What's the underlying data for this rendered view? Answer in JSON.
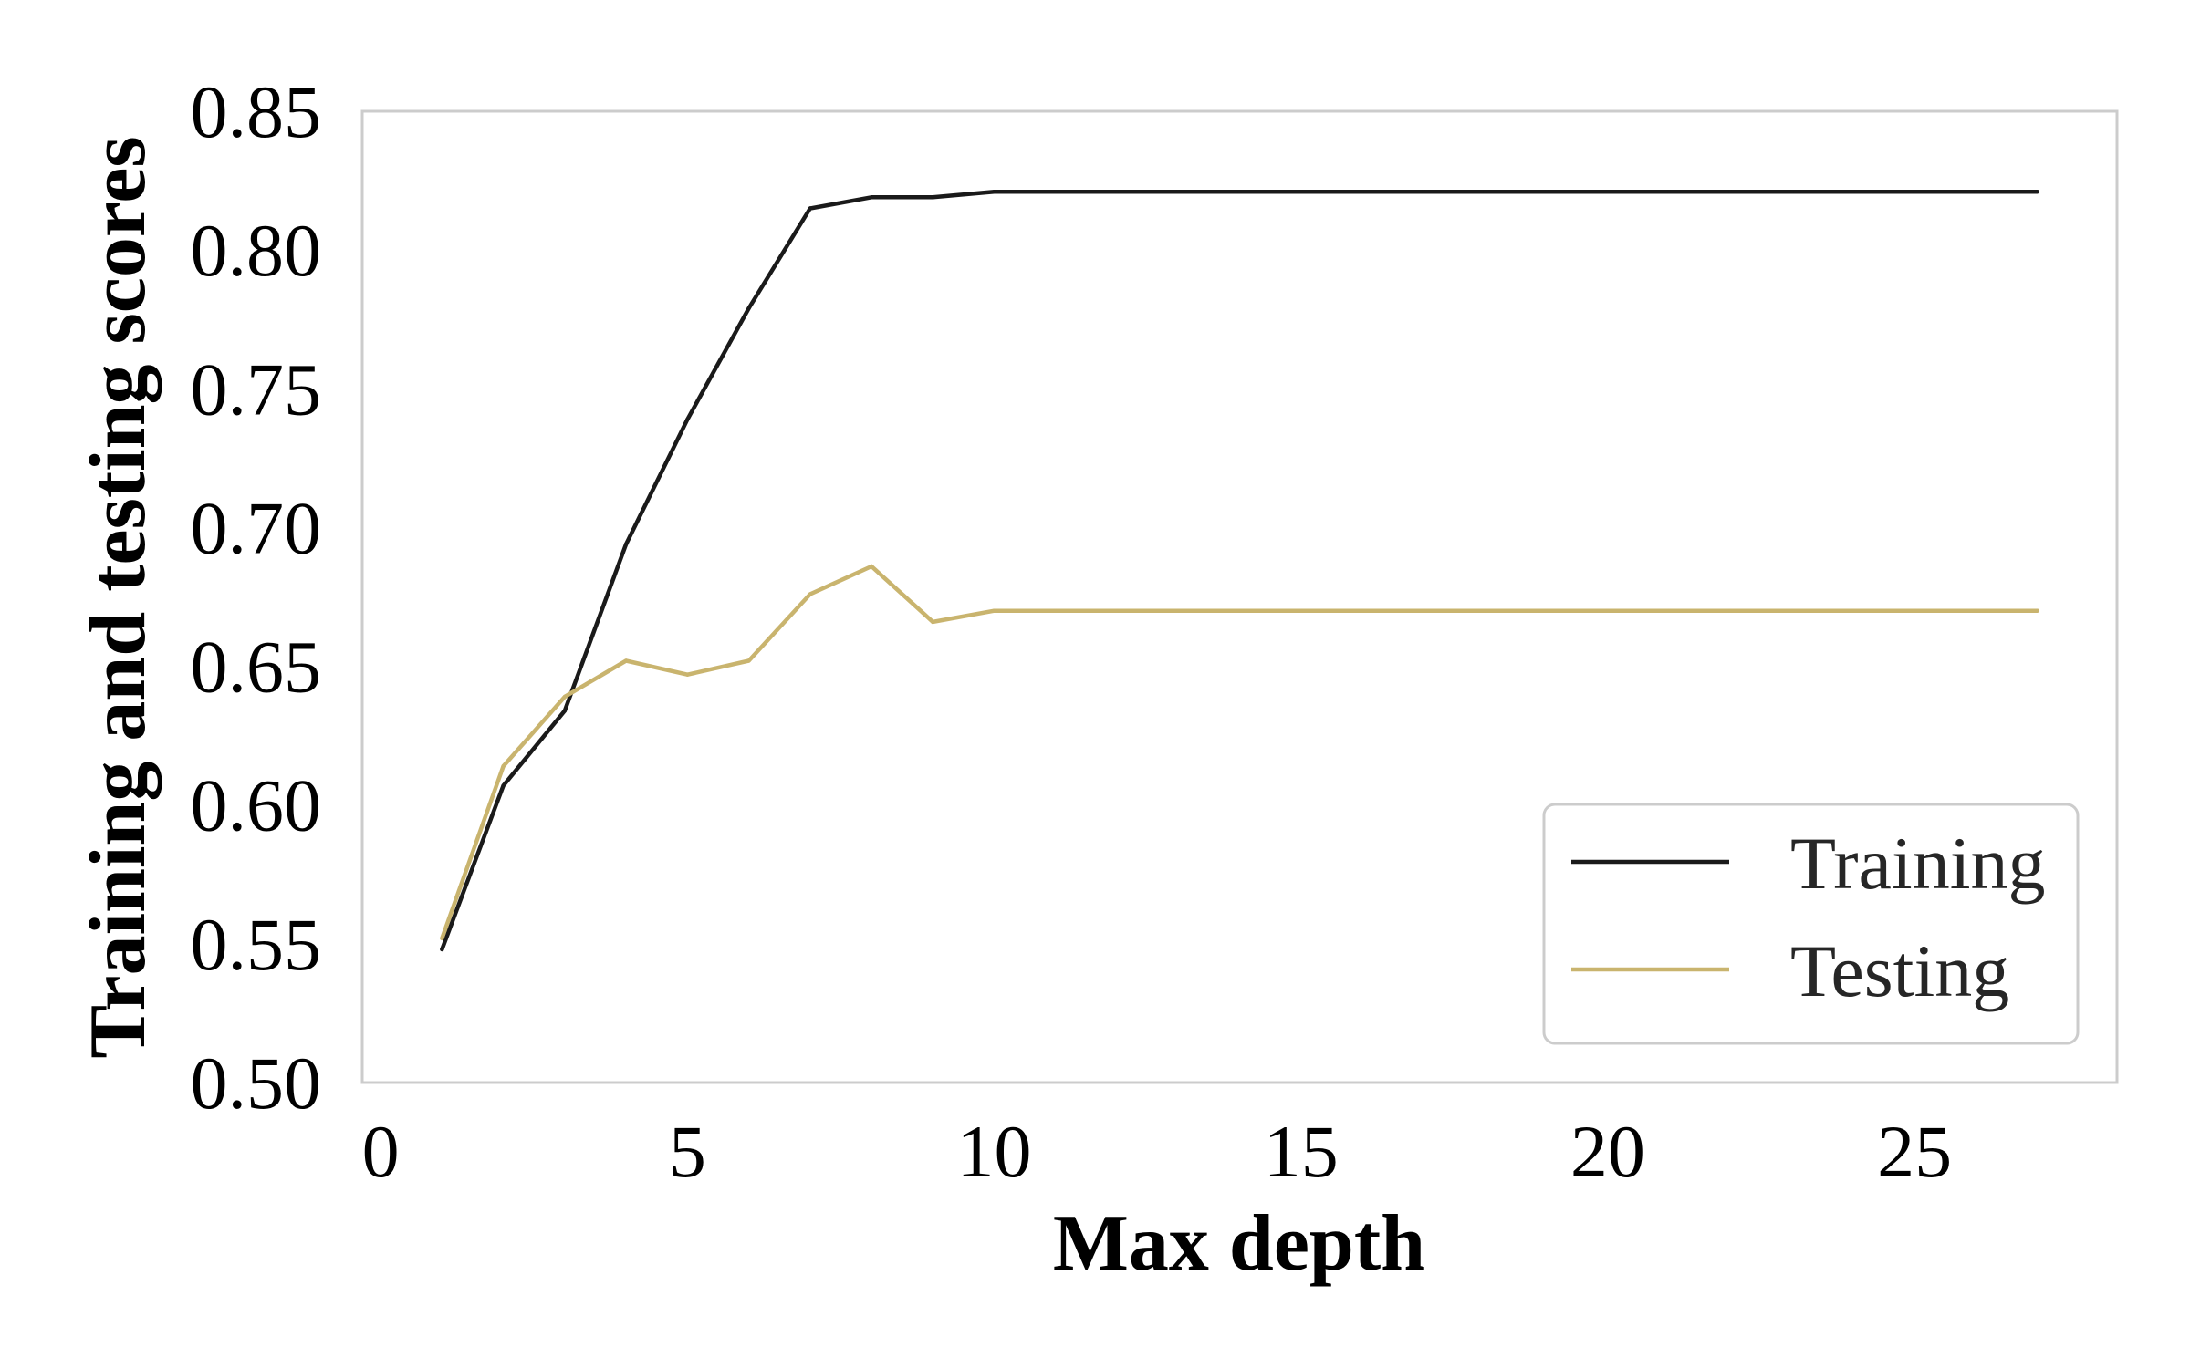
{
  "chart_data": {
    "type": "line",
    "title": "",
    "xlabel": "Max depth",
    "ylabel": "Training and testing scores",
    "xlim": [
      -0.3,
      28.3
    ],
    "ylim": [
      0.5,
      0.85
    ],
    "xticks": [
      0,
      5,
      10,
      15,
      20,
      25
    ],
    "xtick_labels": [
      "0",
      "5",
      "10",
      "15",
      "20",
      "25"
    ],
    "yticks": [
      0.5,
      0.55,
      0.6,
      0.65,
      0.7,
      0.75,
      0.8,
      0.85
    ],
    "ytick_labels": [
      "0.50",
      "0.55",
      "0.60",
      "0.65",
      "0.70",
      "0.75",
      "0.80",
      "0.85"
    ],
    "grid": false,
    "legend_position": "lower-right",
    "x": [
      1,
      2,
      3,
      4,
      5,
      6,
      7,
      8,
      9,
      10,
      11,
      12,
      13,
      14,
      15,
      16,
      17,
      18,
      19,
      20,
      21,
      22,
      23,
      24,
      25,
      26,
      27
    ],
    "series": [
      {
        "name": "Training",
        "color": "#1a1a1a",
        "values": [
          0.548,
          0.607,
          0.634,
          0.694,
          0.739,
          0.779,
          0.815,
          0.819,
          0.819,
          0.821,
          0.821,
          0.821,
          0.821,
          0.821,
          0.821,
          0.821,
          0.821,
          0.821,
          0.821,
          0.821,
          0.821,
          0.821,
          0.821,
          0.821,
          0.821,
          0.821,
          0.821
        ]
      },
      {
        "name": "Testing",
        "color": "#c9b46e",
        "values": [
          0.552,
          0.614,
          0.639,
          0.652,
          0.647,
          0.652,
          0.676,
          0.686,
          0.666,
          0.67,
          0.67,
          0.67,
          0.67,
          0.67,
          0.67,
          0.67,
          0.67,
          0.67,
          0.67,
          0.67,
          0.67,
          0.67,
          0.67,
          0.67,
          0.67,
          0.67,
          0.67
        ]
      }
    ]
  }
}
